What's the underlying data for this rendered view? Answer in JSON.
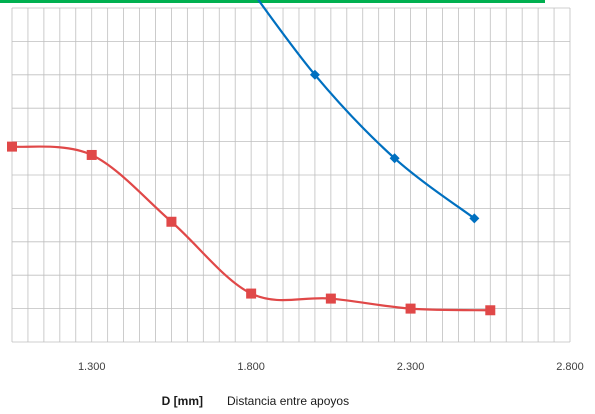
{
  "chart_data": {
    "type": "line",
    "xlabel_symbol": "D [mm]",
    "xlabel": "Distancia entre apoyos",
    "xlim": [
      1050,
      2800
    ],
    "x_ticks": [
      "1.300",
      "1.800",
      "2.300",
      "2.800"
    ],
    "x_tick_values": [
      1300,
      1800,
      2300,
      2800
    ],
    "ylim": [
      0,
      10
    ],
    "grid": true,
    "colors": {
      "accent_line": "#00b050",
      "grid": "#bfbfbf"
    },
    "series": [
      {
        "color": "#0070c0",
        "marker": "diamond",
        "x": [
          1750,
          2000,
          2250,
          2500
        ],
        "y": [
          11.2,
          8.0,
          5.5,
          3.7
        ]
      },
      {
        "color": "#e04848",
        "marker": "square",
        "x": [
          1050,
          1300,
          1550,
          1800,
          2050,
          2300,
          2550
        ],
        "y": [
          5.85,
          5.6,
          3.6,
          1.45,
          1.3,
          1.0,
          0.95
        ]
      }
    ]
  }
}
